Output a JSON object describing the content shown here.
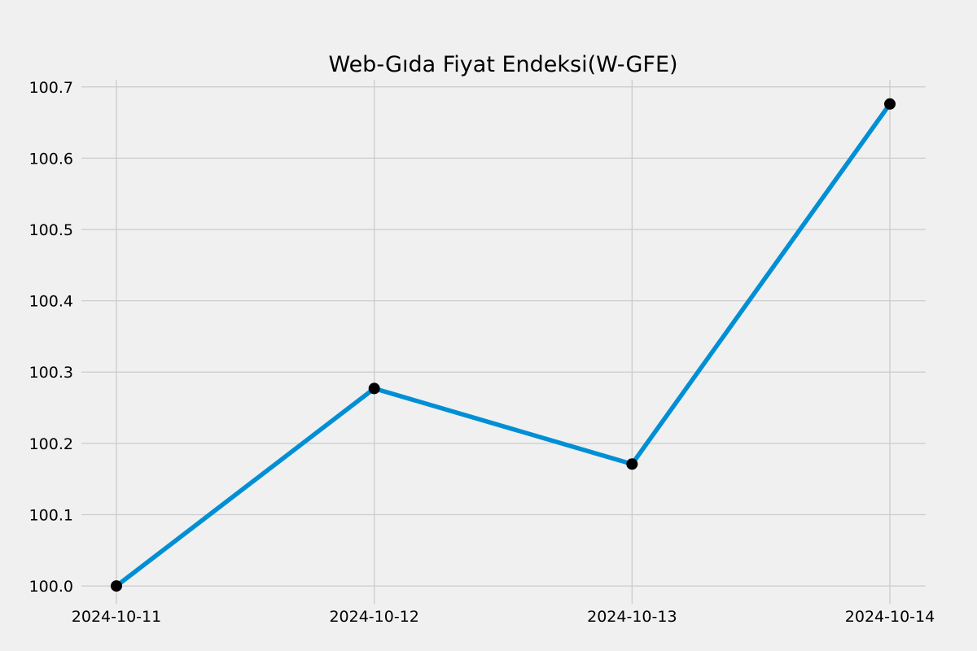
{
  "chart_data": {
    "type": "line",
    "title": "Web-Gıda Fiyat Endeksi(W-GFE)",
    "xlabel": "",
    "ylabel": "",
    "categories": [
      "2024-10-11",
      "2024-10-12",
      "2024-10-13",
      "2024-10-14"
    ],
    "series": [
      {
        "values": [
          100.0,
          100.277,
          100.171,
          100.676
        ],
        "color": "#008fd5",
        "marker_color": "#000000"
      }
    ],
    "yticks": [
      "100.0",
      "100.1",
      "100.2",
      "100.3",
      "100.4",
      "100.5",
      "100.6",
      "100.7"
    ],
    "ylim": [
      99.975,
      100.71
    ],
    "grid": true,
    "background_color": "#f0f0f0",
    "grid_color": "#cbcbcb"
  }
}
